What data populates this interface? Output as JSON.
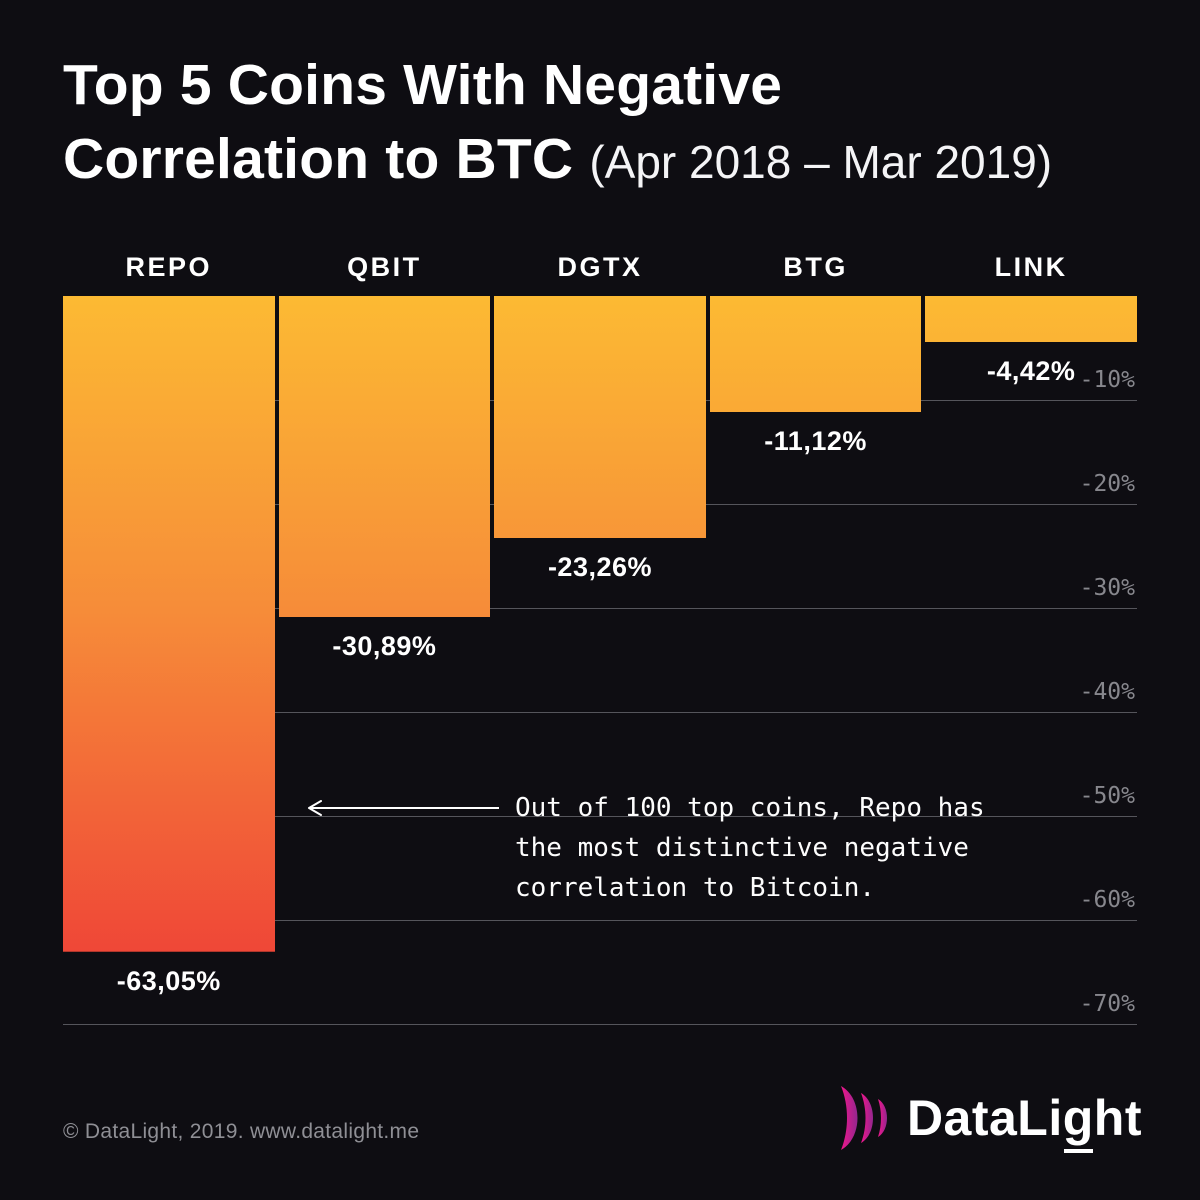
{
  "title": {
    "line1": "Top 5 Coins With Negative",
    "line2_bold": "Correlation to BTC",
    "line2_light": "(Apr 2018 – Mar 2019)"
  },
  "chart_data": {
    "type": "bar",
    "orientation": "vertical-downward",
    "title": "Top 5 Coins With Negative Correlation to BTC (Apr 2018 – Mar 2019)",
    "categories": [
      "REPO",
      "QBIT",
      "DGTX",
      "BTG",
      "LINK"
    ],
    "values": [
      -63.05,
      -30.89,
      -23.26,
      -11.12,
      -4.42
    ],
    "value_labels": [
      "-63,05%",
      "-30,89%",
      "-23,26%",
      "-11,12%",
      "-4,42%"
    ],
    "ylim": [
      -70,
      0
    ],
    "gridline_values": [
      -10,
      -20,
      -30,
      -40,
      -50,
      -60,
      -70
    ],
    "gridline_labels": [
      "-10%",
      "-20%",
      "-30%",
      "-40%",
      "-50%",
      "-60%",
      "-70%"
    ],
    "grid_on": true,
    "legend": "none",
    "bar_gradient": [
      "#fcba33",
      "#f68c39",
      "#ef4737"
    ],
    "grid_color": "#55555b",
    "background": "#0e0d12"
  },
  "annotation": {
    "lines": [
      "Out of 100 top coins, Repo has",
      "the most distinctive negative",
      "correlation to Bitcoin."
    ]
  },
  "footer": {
    "copyright": "© DataLight, 2019. www.datalight.me",
    "logo": {
      "part1": "DataLi",
      "g": "g",
      "part2": "ht"
    },
    "logo_color_start": "#f0168c",
    "logo_color_end": "#93278f"
  }
}
